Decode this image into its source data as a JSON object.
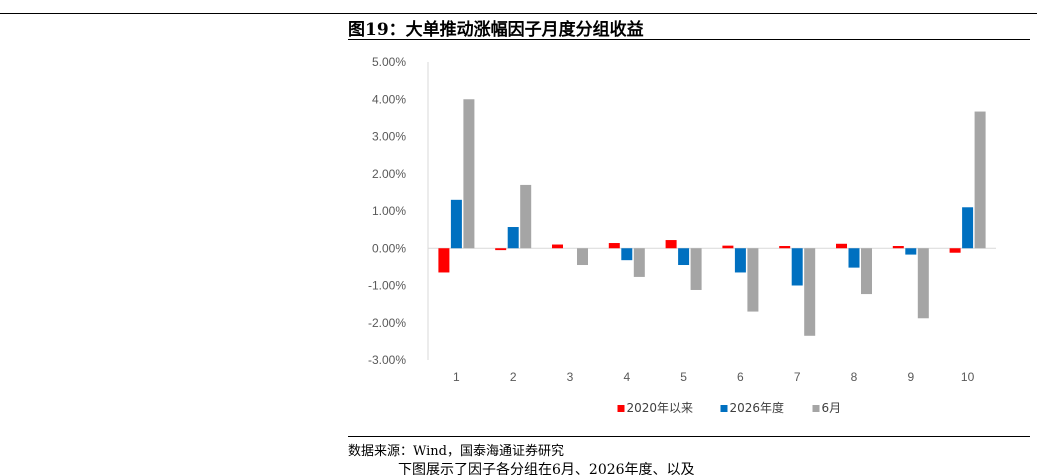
{
  "figure": {
    "title": "图19：大单推动涨幅因子月度分组收益",
    "source": "数据来源：Wind，国泰海通证券研究",
    "tail_text": "下图展示了因子各分组在6月、2026年度、以及"
  },
  "chart_data": {
    "type": "bar",
    "categories": [
      "1",
      "2",
      "3",
      "4",
      "5",
      "6",
      "7",
      "8",
      "9",
      "10"
    ],
    "series": [
      {
        "name": "2020年以来",
        "color": "#FF0000",
        "values": [
          -0.65,
          -0.05,
          0.1,
          0.14,
          0.22,
          0.07,
          0.06,
          0.12,
          0.06,
          -0.12
        ]
      },
      {
        "name": "2026年度",
        "color": "#0070C0",
        "values": [
          1.3,
          0.57,
          0.0,
          -0.32,
          -0.45,
          -0.65,
          -1.0,
          -0.52,
          -0.17,
          1.1
        ]
      },
      {
        "name": "6月",
        "color": "#A5A5A5",
        "values": [
          4.0,
          1.7,
          -0.45,
          -0.77,
          -1.12,
          -1.7,
          -2.35,
          -1.23,
          -1.88,
          3.67
        ]
      }
    ],
    "ylim": [
      -3.0,
      5.0
    ],
    "yticks": [
      "5.00%",
      "4.00%",
      "3.00%",
      "2.00%",
      "1.00%",
      "0.00%",
      "-1.00%",
      "-2.00%",
      "-3.00%"
    ],
    "ytick_values": [
      5,
      4,
      3,
      2,
      1,
      0,
      -1,
      -2,
      -3
    ],
    "grid": false,
    "legend_position": "bottom"
  }
}
